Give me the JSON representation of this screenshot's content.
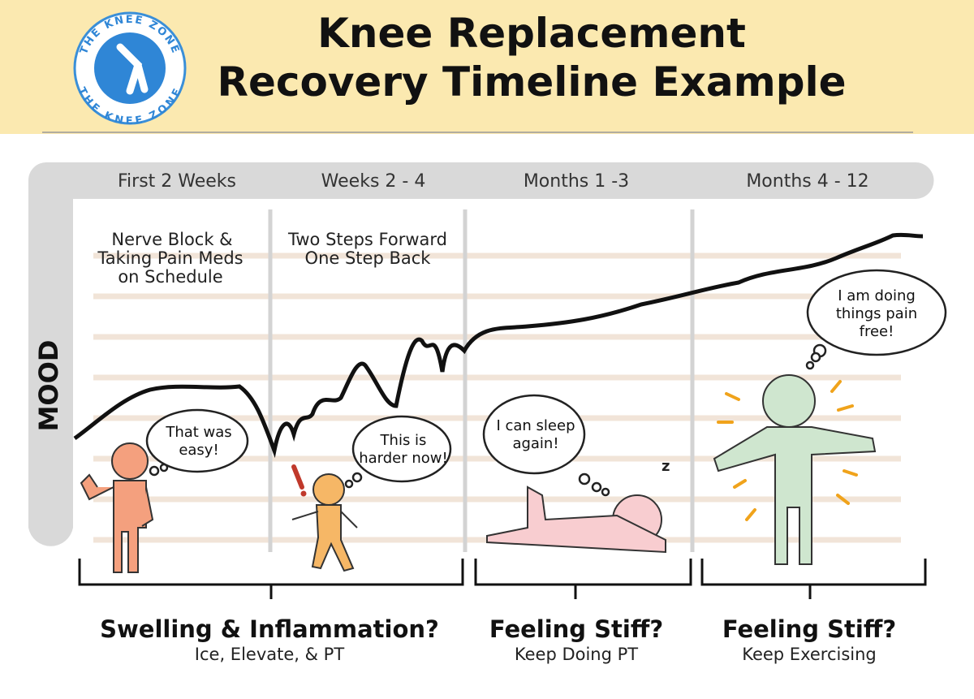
{
  "logo": {
    "text": "THE KNEE ZONE"
  },
  "header": {
    "title_lines": [
      "Knee Replacement",
      "Recovery Timeline Example"
    ]
  },
  "axis_label": "MOOD",
  "periods": [
    "First 2 Weeks",
    "Weeks 2 - 4",
    "Months 1 -3",
    "Months 4 - 12"
  ],
  "notes": [
    {
      "lines": [
        "Nerve Block &",
        "Taking Pain Meds",
        "on Schedule"
      ]
    },
    {
      "lines": [
        "Two Steps Forward",
        "One Step Back"
      ]
    }
  ],
  "bubbles": [
    {
      "lines": [
        "That was",
        "easy!"
      ]
    },
    {
      "lines": [
        "This is",
        "harder now!"
      ]
    },
    {
      "lines": [
        "I can sleep",
        "again!"
      ]
    },
    {
      "lines": [
        "I am doing",
        "things pain",
        "free!"
      ]
    }
  ],
  "brackets": [
    {
      "title": "Swelling & Inflammation?",
      "subtitle": "Ice, Elevate, & PT"
    },
    {
      "title": "Feeling Stiff?",
      "subtitle": "Keep Doing PT"
    },
    {
      "title": "Feeling Stiff?",
      "subtitle": "Keep Exercising"
    }
  ]
}
